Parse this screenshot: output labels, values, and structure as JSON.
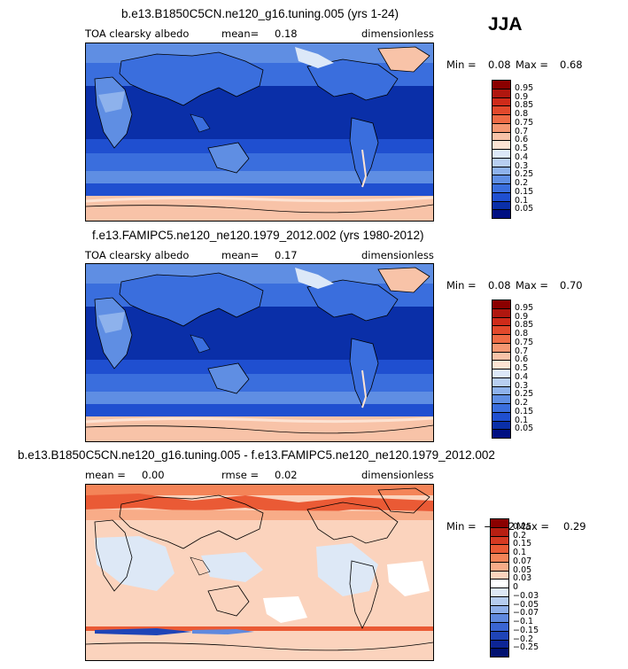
{
  "season": "JJA",
  "panels": [
    {
      "title": "b.e13.B1850C5CN.ne120_g16.tuning.005 (yrs 1-24)",
      "left_label": "TOA clearsky albedo",
      "mean_label": "mean=",
      "mean_value": "0.18",
      "units": "dimensionless",
      "min_label": "Min =",
      "min_value": "0.08",
      "max_label": "Max =",
      "max_value": "0.68",
      "colorbar": [
        "0.95",
        "0.9",
        "0.85",
        "0.8",
        "0.75",
        "0.7",
        "0.6",
        "0.5",
        "0.4",
        "0.3",
        "0.25",
        "0.2",
        "0.15",
        "0.1",
        "0.05"
      ]
    },
    {
      "title": "f.e13.FAMIPC5.ne120_ne120.1979_2012.002 (yrs 1980-2012)",
      "left_label": "TOA clearsky albedo",
      "mean_label": "mean=",
      "mean_value": "0.17",
      "units": "dimensionless",
      "min_label": "Min =",
      "min_value": "0.08",
      "max_label": "Max =",
      "max_value": "0.70",
      "colorbar": [
        "0.95",
        "0.9",
        "0.85",
        "0.8",
        "0.75",
        "0.7",
        "0.6",
        "0.5",
        "0.4",
        "0.3",
        "0.25",
        "0.2",
        "0.15",
        "0.1",
        "0.05"
      ]
    },
    {
      "title": "b.e13.B1850C5CN.ne120_g16.tuning.005 - f.e13.FAMIPC5.ne120_ne120.1979_2012.002",
      "left_label": "mean =",
      "mean_label": "",
      "mean_value": "0.00",
      "rmse_label": "rmse =",
      "rmse_value": "0.02",
      "units": "dimensionless",
      "min_label": "Min =",
      "min_value": "−0.22",
      "max_label": "Max =",
      "max_value": "0.29",
      "colorbar": [
        "0.25",
        "0.2",
        "0.15",
        "0.1",
        "0.07",
        "0.05",
        "0.03",
        "0",
        "−0.03",
        "−0.05",
        "−0.07",
        "−0.1",
        "−0.15",
        "−0.2",
        "−0.25"
      ]
    }
  ],
  "colors": {
    "abs_scale": [
      "#8b0000",
      "#b0170f",
      "#cf2b1a",
      "#e2492c",
      "#ef6b45",
      "#f59772",
      "#f8c3a8",
      "#fde3d3",
      "#dce8f8",
      "#b8cff2",
      "#8eb2ec",
      "#5f8ee3",
      "#3a6edd",
      "#1f4fd0",
      "#0a2fa8",
      "#000f82"
    ],
    "diff_scale": [
      "#8b0000",
      "#b81f12",
      "#d63a22",
      "#ea5a35",
      "#f48458",
      "#f8ac88",
      "#fbd3bd",
      "#ffffff",
      "#dde8f6",
      "#b6cdf0",
      "#8fb0ea",
      "#5f89de",
      "#3a65d3",
      "#1f44b7",
      "#0d2596",
      "#001070"
    ]
  }
}
